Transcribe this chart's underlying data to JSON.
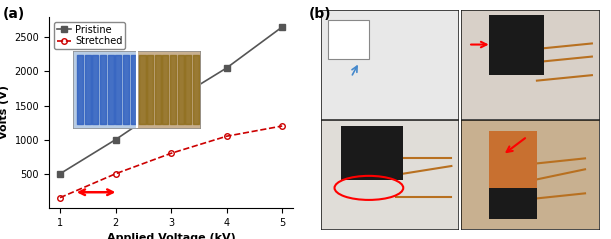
{
  "pristine_x": [
    1,
    2,
    3,
    4,
    5
  ],
  "pristine_y": [
    500,
    1000,
    1550,
    2050,
    2650
  ],
  "stretched_x": [
    1,
    2,
    3,
    4,
    5
  ],
  "stretched_y": [
    150,
    500,
    800,
    1050,
    1200
  ],
  "pristine_color": "#555555",
  "stretched_color": "#cc0000",
  "xlabel": "Applied Voltage (kV)",
  "ylabel": "Volts (V)",
  "ylim": [
    0,
    2800
  ],
  "xlim": [
    0.8,
    5.2
  ],
  "yticks": [
    500,
    1000,
    1500,
    2000,
    2500
  ],
  "xticks": [
    1,
    2,
    3,
    4,
    5
  ],
  "legend_pristine": "Pristine",
  "legend_stretched": "Stretched",
  "panel_label_a": "(a)",
  "panel_label_b": "(b)",
  "label_fontsize": 8,
  "tick_fontsize": 7,
  "legend_fontsize": 7,
  "panel_fontsize": 10,
  "bg_left_top": "#d6e4ee",
  "bg_left_bottom": "#c8bfb5",
  "bg_right_top": "#c8c8c8",
  "bg_right_bottom": "#c87840"
}
